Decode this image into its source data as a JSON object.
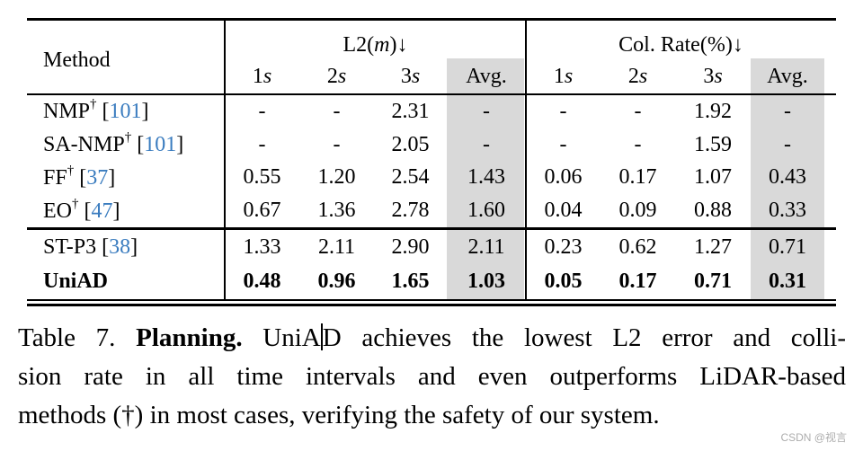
{
  "colors": {
    "cite_blue": "#3a7cbf",
    "avg_gray": "#d9d9d9",
    "rule_black": "#000000",
    "watermark_gray": "#adadad"
  },
  "table": {
    "method_header": "Method",
    "groups": [
      {
        "pre": "L2(",
        "math": "m",
        "post": ")↓"
      },
      {
        "pre": "Col. Rate(%)",
        "math": "",
        "post": "↓"
      }
    ],
    "sub_columns": [
      "1s",
      "2s",
      "3s",
      "Avg.",
      "1s",
      "2s",
      "3s",
      "Avg."
    ],
    "rows": [
      {
        "section": 1,
        "method": "NMP",
        "dagger": "†",
        "cite": "101",
        "bold": false,
        "values": [
          "-",
          "-",
          "2.31",
          "-",
          "-",
          "-",
          "1.92",
          "-"
        ]
      },
      {
        "section": 1,
        "method": "SA-NMP",
        "dagger": "†",
        "cite": "101",
        "bold": false,
        "values": [
          "-",
          "-",
          "2.05",
          "-",
          "-",
          "-",
          "1.59",
          "-"
        ]
      },
      {
        "section": 1,
        "method": "FF",
        "dagger": "†",
        "cite": "37",
        "bold": false,
        "values": [
          "0.55",
          "1.20",
          "2.54",
          "1.43",
          "0.06",
          "0.17",
          "1.07",
          "0.43"
        ]
      },
      {
        "section": 1,
        "method": "EO",
        "dagger": "†",
        "cite": "47",
        "bold": false,
        "values": [
          "0.67",
          "1.36",
          "2.78",
          "1.60",
          "0.04",
          "0.09",
          "0.88",
          "0.33"
        ]
      },
      {
        "section": 2,
        "method": "ST-P3",
        "dagger": "",
        "cite": "38",
        "bold": false,
        "values": [
          "1.33",
          "2.11",
          "2.90",
          "2.11",
          "0.23",
          "0.62",
          "1.27",
          "0.71"
        ]
      },
      {
        "section": 2,
        "method": "UniAD",
        "dagger": "",
        "cite": "",
        "bold": true,
        "values": [
          "0.48",
          "0.96",
          "1.65",
          "1.03",
          "0.05",
          "0.17",
          "0.71",
          "0.31"
        ]
      }
    ]
  },
  "caption": {
    "line1_parts": [
      {
        "text": "Table 7. ",
        "bold": false
      },
      {
        "text": "Planning.",
        "bold": true
      },
      {
        "text": " UniA",
        "bold": false
      },
      {
        "cursor": true
      },
      {
        "text": "D achieves the lowest L2 error and colli-",
        "bold": false
      }
    ],
    "line2": "sion rate in all time intervals and even outperforms LiDAR-based",
    "line3": "methods (†) in most cases, verifying the safety of our system."
  },
  "watermark": "CSDN @视言"
}
